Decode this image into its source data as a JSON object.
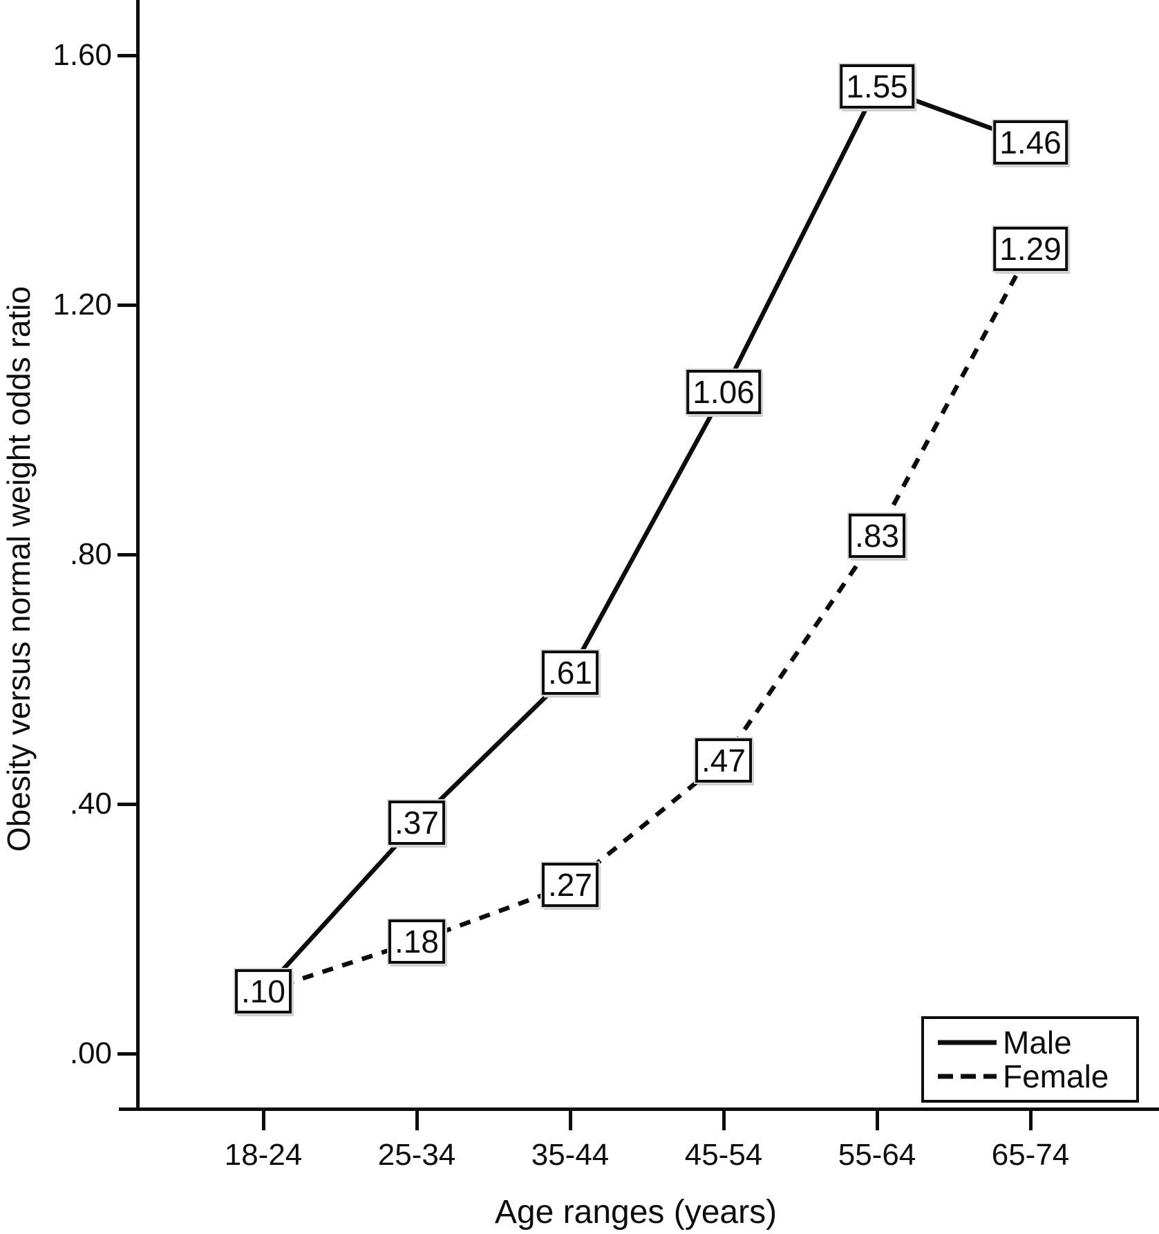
{
  "figure": {
    "background": "#ffffff",
    "ink": "#0d0d0d",
    "label_box_fill": "#ffffff",
    "label_box_halo": "#d8d8d8"
  },
  "chart_data": {
    "type": "line",
    "title": "",
    "xlabel": "Age ranges (years)",
    "ylabel": "Obesity versus normal weight odds ratio",
    "categories": [
      "18-24",
      "25-34",
      "35-44",
      "45-54",
      "55-64",
      "65-74"
    ],
    "y_ticks": [
      {
        "label": "1.60",
        "value": 1.6
      },
      {
        "label": "1.20",
        "value": 1.2
      },
      {
        "label": ".80",
        "value": 0.8
      },
      {
        "label": ".40",
        "value": 0.4
      },
      {
        "label": ".00",
        "value": 0.0
      }
    ],
    "ylim": [
      -0.09,
      1.69
    ],
    "grid": false,
    "series": [
      {
        "name": "Male",
        "line_style": "solid",
        "values": [
          0.1,
          0.37,
          0.61,
          1.06,
          1.55,
          1.46
        ],
        "point_labels": [
          ".10",
          ".37",
          ".61",
          "1.06",
          "1.55",
          "1.46"
        ]
      },
      {
        "name": "Female",
        "line_style": "dashed",
        "values": [
          0.1,
          0.18,
          0.27,
          0.47,
          0.83,
          1.29
        ],
        "point_labels": [
          "",
          ".18",
          ".27",
          ".47",
          ".83",
          "1.29"
        ]
      }
    ],
    "first_point_label_shared": true,
    "legend": {
      "position": "inside-bottom-right"
    }
  }
}
